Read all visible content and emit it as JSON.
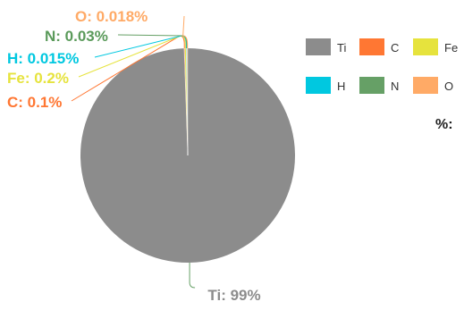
{
  "chart_data": {
    "type": "pie",
    "unit_label": "%:",
    "slices": [
      {
        "name": "Ti",
        "value": 99,
        "label": "Ti: 99%",
        "color": "#8c8c8c"
      },
      {
        "name": "C",
        "value": 0.1,
        "label": "C: 0.1%",
        "color": "#ff7733"
      },
      {
        "name": "Fe",
        "value": 0.2,
        "label": "Fe: 0.2%",
        "color": "#e6e33d"
      },
      {
        "name": "H",
        "value": 0.015,
        "label": "H: 0.015%",
        "color": "#00c8e0"
      },
      {
        "name": "N",
        "value": 0.03,
        "label": "N: 0.03%",
        "color": "#66a066"
      },
      {
        "name": "O",
        "value": 0.018,
        "label": "O: 0.018%",
        "color": "#ffaa66"
      }
    ],
    "legend_position": "top-right"
  }
}
